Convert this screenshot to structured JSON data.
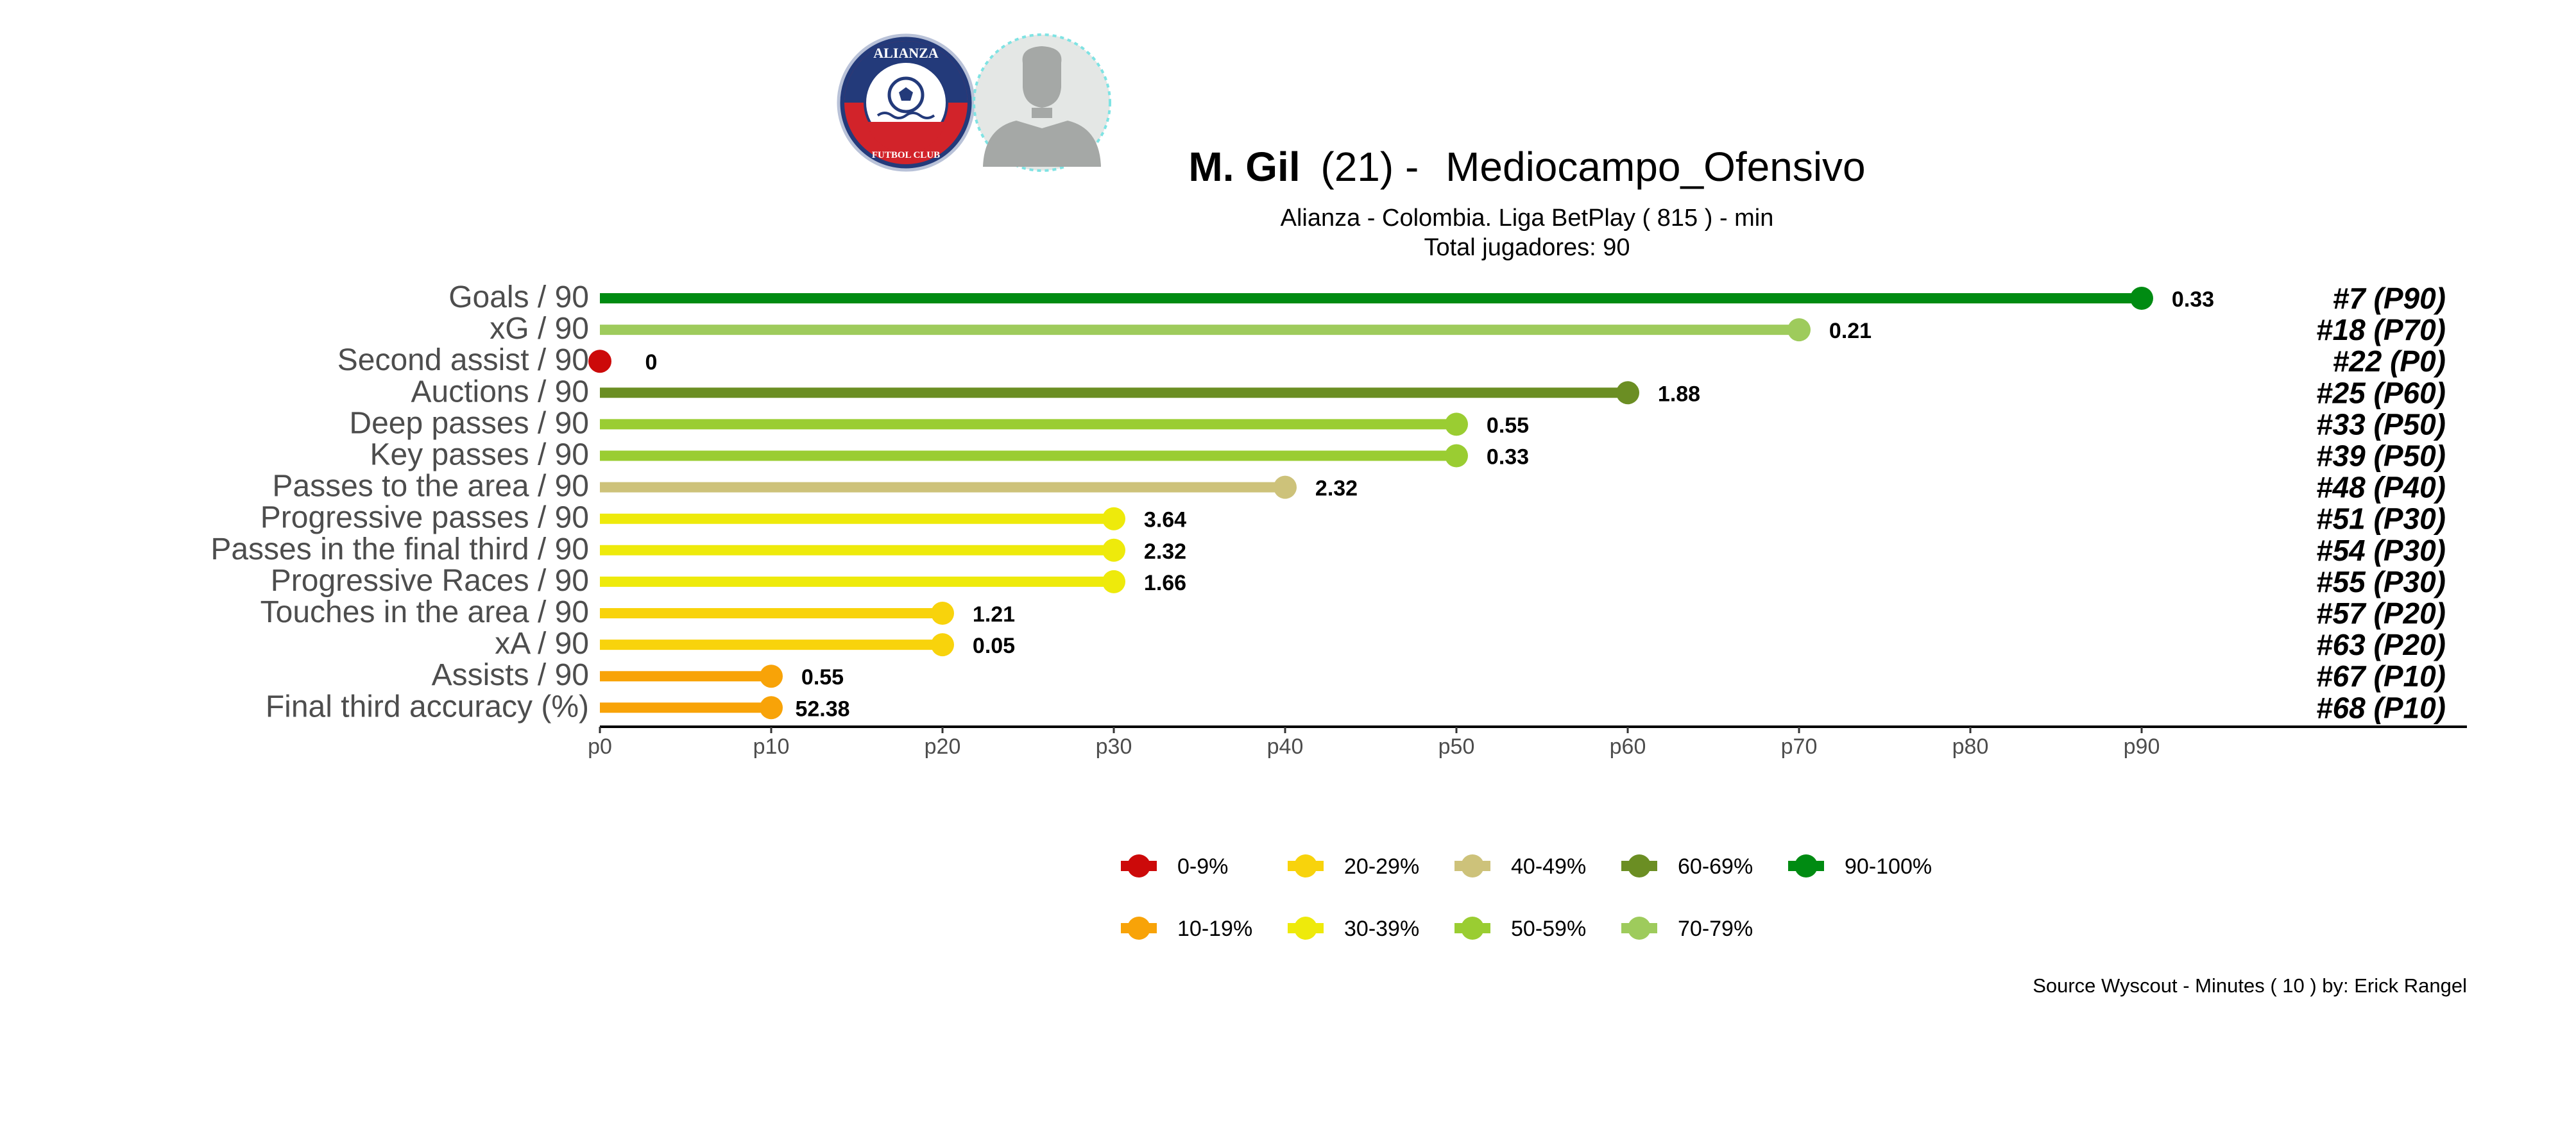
{
  "header": {
    "player_name": "M. Gil",
    "player_age": "(21) -",
    "player_position": "Mediocampo_Ofensivo",
    "subtitle": "Alianza  -  Colombia. Liga BetPlay  ( 815 ) - min",
    "total_players": "Total jugadores:  90",
    "club_logo": {
      "ring_top_text": "ALIANZA",
      "ring_bottom_text": "FUTBOL CLUB",
      "colors": {
        "blue": "#233a7a",
        "red": "#d2232a",
        "white": "#ffffff"
      }
    },
    "player_photo_icon": "player-silhouette-icon"
  },
  "chart_data": {
    "type": "lollipop",
    "x_axis": {
      "ticks": [
        "p0",
        "p10",
        "p20",
        "p30",
        "p40",
        "p50",
        "p60",
        "p70",
        "p80",
        "p90"
      ],
      "xlim": [
        0,
        90
      ]
    },
    "metrics": [
      {
        "label": "Goals / 90",
        "percentile": 90,
        "value": "0.33",
        "rank": "#7 (P90)",
        "bin": "90-100%"
      },
      {
        "label": "xG / 90",
        "percentile": 70,
        "value": "0.21",
        "rank": "#18 (P70)",
        "bin": "70-79%"
      },
      {
        "label": "Second assist / 90",
        "percentile": 0,
        "value": "0",
        "rank": "#22 (P0)",
        "bin": "0-9%"
      },
      {
        "label": "Auctions / 90",
        "percentile": 60,
        "value": "1.88",
        "rank": "#25 (P60)",
        "bin": "60-69%"
      },
      {
        "label": "Deep passes / 90",
        "percentile": 50,
        "value": "0.55",
        "rank": "#33 (P50)",
        "bin": "50-59%"
      },
      {
        "label": "Key passes / 90",
        "percentile": 50,
        "value": "0.33",
        "rank": "#39 (P50)",
        "bin": "50-59%"
      },
      {
        "label": "Passes to the area / 90",
        "percentile": 40,
        "value": "2.32",
        "rank": "#48 (P40)",
        "bin": "40-49%"
      },
      {
        "label": "Progressive passes / 90",
        "percentile": 30,
        "value": "3.64",
        "rank": "#51 (P30)",
        "bin": "30-39%"
      },
      {
        "label": "Passes in the final third / 90",
        "percentile": 30,
        "value": "2.32",
        "rank": "#54 (P30)",
        "bin": "30-39%"
      },
      {
        "label": "Progressive Races / 90",
        "percentile": 30,
        "value": "1.66",
        "rank": "#55 (P30)",
        "bin": "30-39%"
      },
      {
        "label": "Touches in the area / 90",
        "percentile": 20,
        "value": "1.21",
        "rank": "#57 (P20)",
        "bin": "20-29%"
      },
      {
        "label": "xA / 90",
        "percentile": 20,
        "value": "0.05",
        "rank": "#63 (P20)",
        "bin": "20-29%"
      },
      {
        "label": "Assists / 90",
        "percentile": 10,
        "value": "0.55",
        "rank": "#67 (P10)",
        "bin": "10-19%"
      },
      {
        "label": "Final third accuracy (%)",
        "percentile": 10,
        "value": "52.38",
        "rank": "#68 (P10)",
        "bin": "10-19%"
      }
    ],
    "legend": {
      "position": "bottom",
      "items": [
        {
          "label": "0-9%",
          "color": "#cc0a0a"
        },
        {
          "label": "20-29%",
          "color": "#f8d30c"
        },
        {
          "label": "40-49%",
          "color": "#cdc27a"
        },
        {
          "label": "60-69%",
          "color": "#6b8e23"
        },
        {
          "label": "90-100%",
          "color": "#008b12"
        },
        {
          "label": "10-19%",
          "color": "#f8a308"
        },
        {
          "label": "30-39%",
          "color": "#eeea0b"
        },
        {
          "label": "50-59%",
          "color": "#9acd32"
        },
        {
          "label": "70-79%",
          "color": "#9ecb5c"
        }
      ]
    },
    "grid": false
  },
  "footer": {
    "source": "Source Wyscout - Minutes ( 10 ) by: Erick Rangel"
  }
}
